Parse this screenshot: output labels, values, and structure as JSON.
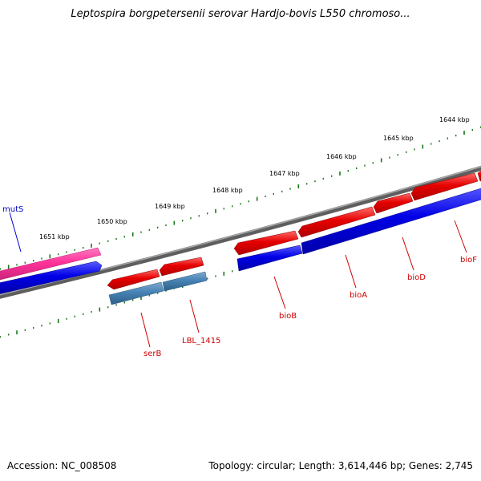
{
  "title": "Leptospira borgpetersenii serovar Hardjo-bovis L550 chromoso...",
  "footer": {
    "accession": "Accession: NC_008508",
    "summary": "Topology: circular; Length: 3,614,446 bp; Genes: 2,745"
  },
  "colors": {
    "backbone": "#808080",
    "tick": "#1a7a1a",
    "forward_gene": "#e60000",
    "reverse_gene": "#0000e6",
    "highlight_gene": "#ff3399",
    "alt_gene": "#4682b4",
    "label_red": "#cc0000",
    "label_blue": "#0000cc"
  },
  "scale_labels": [
    "1651 kbp",
    "1650 kbp",
    "1649 kbp",
    "1648 kbp",
    "1647 kbp",
    "1646 kbp",
    "1645 kbp",
    "1644 kbp"
  ],
  "gene_labels": {
    "mutS": "mutS",
    "serB": "serB",
    "LBL_1415": "LBL_1415",
    "bioB": "bioB",
    "bioA": "bioA",
    "bioD": "bioD",
    "bioF": "bioF"
  }
}
